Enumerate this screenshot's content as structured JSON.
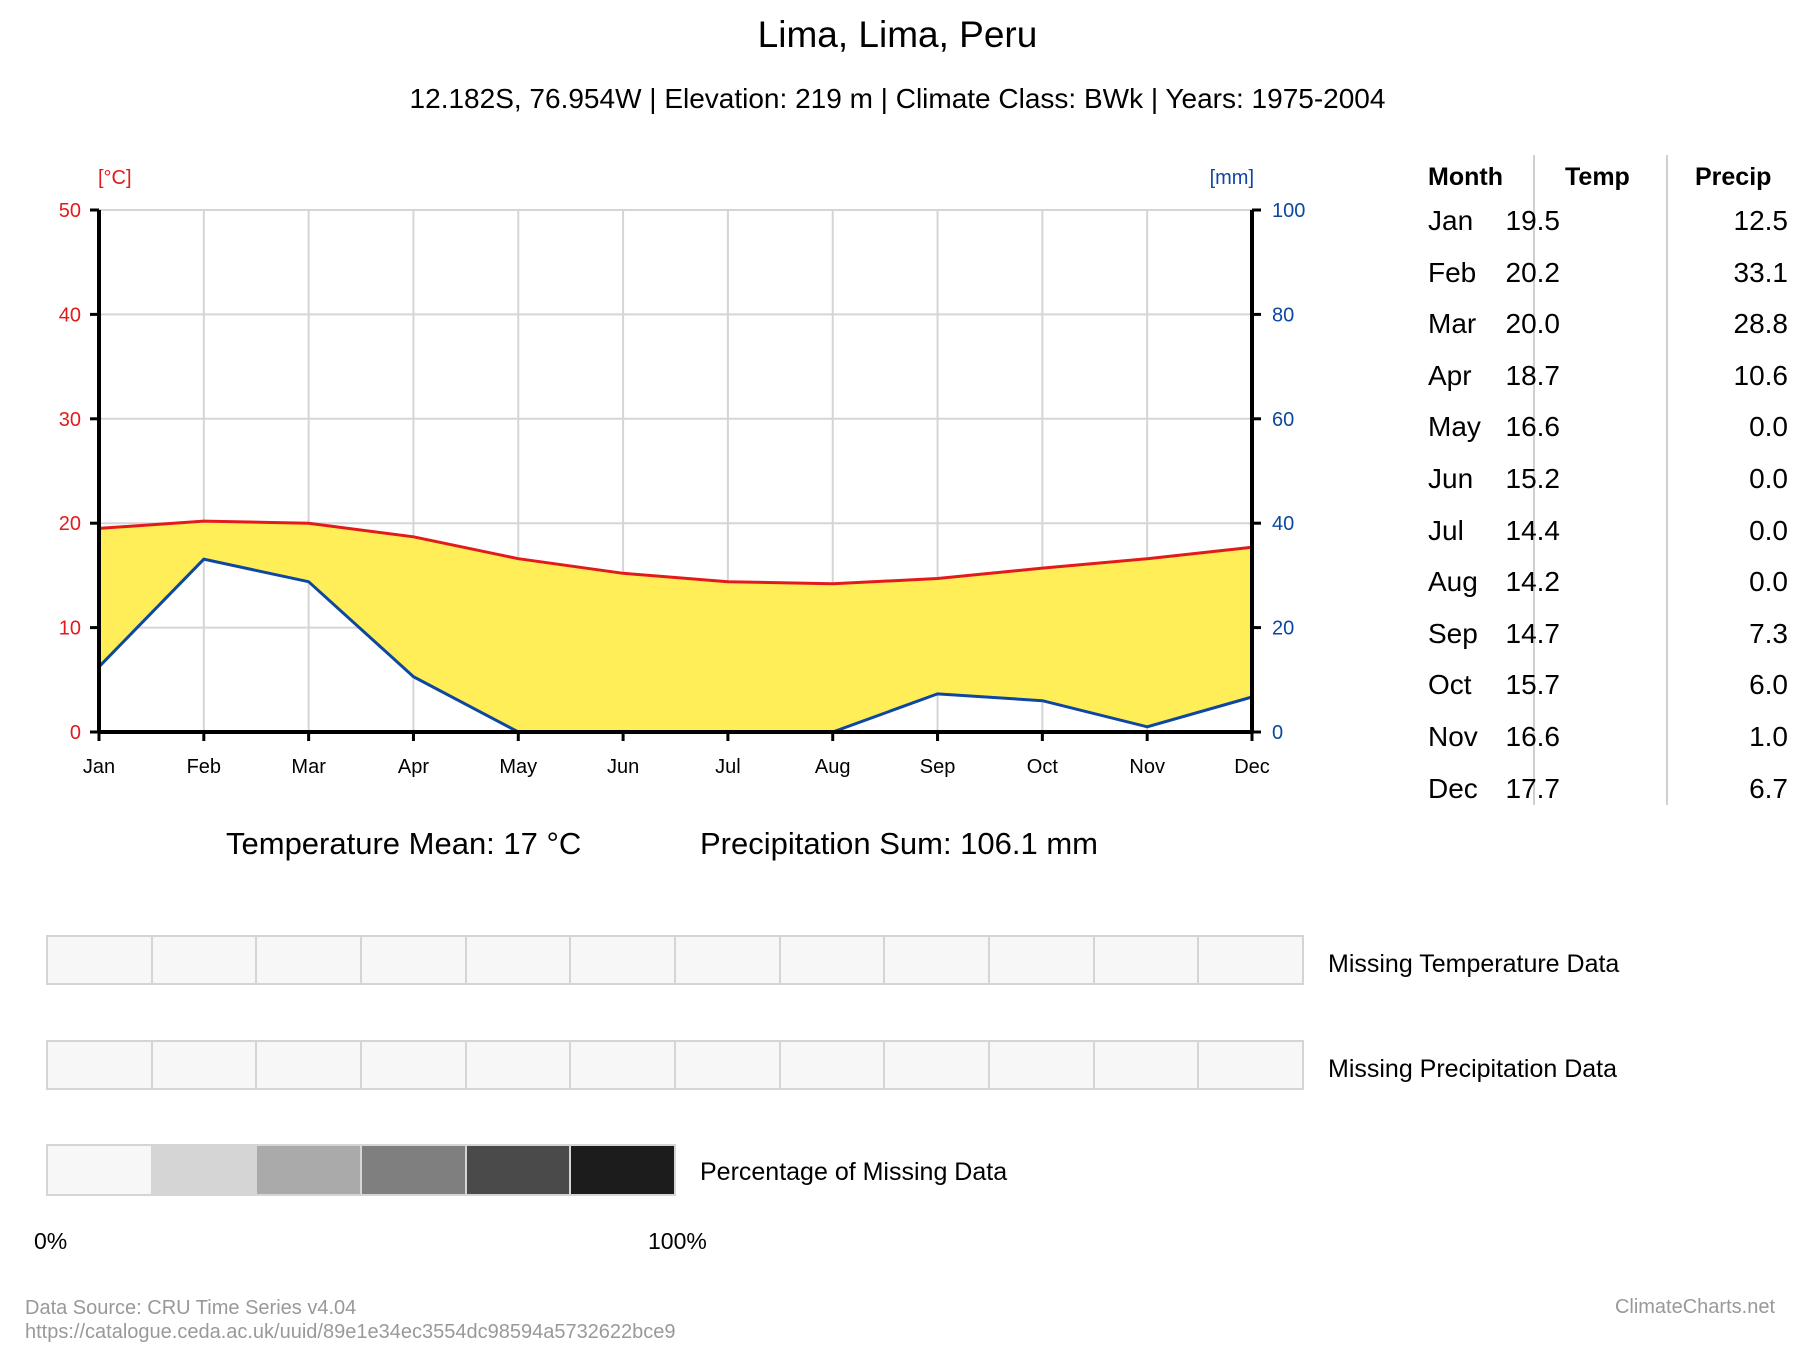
{
  "title": "Lima, Lima, Peru",
  "subtitle": "12.182S, 76.954W | Elevation: 219 m | Climate Class: BWk | Years: 1975-2004",
  "summary": {
    "temp_mean": "Temperature Mean: 17 °C",
    "precip_sum": "Precipitation Sum: 106.1 mm"
  },
  "table": {
    "headers": [
      "Month",
      "Temp",
      "Precip"
    ],
    "rows": [
      {
        "month": "Jan",
        "temp": "19.5",
        "precip": "12.5"
      },
      {
        "month": "Feb",
        "temp": "20.2",
        "precip": "33.1"
      },
      {
        "month": "Mar",
        "temp": "20.0",
        "precip": "28.8"
      },
      {
        "month": "Apr",
        "temp": "18.7",
        "precip": "10.6"
      },
      {
        "month": "May",
        "temp": "16.6",
        "precip": "0.0"
      },
      {
        "month": "Jun",
        "temp": "15.2",
        "precip": "0.0"
      },
      {
        "month": "Jul",
        "temp": "14.4",
        "precip": "0.0"
      },
      {
        "month": "Aug",
        "temp": "14.2",
        "precip": "0.0"
      },
      {
        "month": "Sep",
        "temp": "14.7",
        "precip": "7.3"
      },
      {
        "month": "Oct",
        "temp": "15.7",
        "precip": "6.0"
      },
      {
        "month": "Nov",
        "temp": "16.6",
        "precip": "1.0"
      },
      {
        "month": "Dec",
        "temp": "17.7",
        "precip": "6.7"
      }
    ]
  },
  "missing": {
    "temp_label": "Missing Temperature Data",
    "precip_label": "Missing Precipitation Data",
    "temp_fractions": [
      0,
      0,
      0,
      0,
      0,
      0,
      0,
      0,
      0,
      0,
      0,
      0
    ],
    "precip_fractions": [
      0,
      0,
      0,
      0,
      0,
      0,
      0,
      0,
      0,
      0,
      0,
      0
    ],
    "legend_label": "Percentage of Missing Data",
    "legend_colors": [
      "#f7f7f7",
      "#d5d5d5",
      "#aaaaaa",
      "#7f7f7f",
      "#4a4a4a",
      "#1c1c1c"
    ],
    "legend_min": "0%",
    "legend_max": "100%"
  },
  "footer": {
    "source": "Data Source: CRU Time Series v4.04",
    "url": "https://catalogue.ceda.ac.uk/uuid/89e1e34ec3554dc98594a5732622bce9",
    "brand": "ClimateCharts.net"
  },
  "colors": {
    "temp": "#e31a1c",
    "precip": "#0d47a1",
    "arid_fill": "#ffee58",
    "grid": "#d5d5d5"
  },
  "chart_data": {
    "type": "line",
    "categories": [
      "Jan",
      "Feb",
      "Mar",
      "Apr",
      "May",
      "Jun",
      "Jul",
      "Aug",
      "Sep",
      "Oct",
      "Nov",
      "Dec"
    ],
    "series": [
      {
        "name": "Temp",
        "axis": "left",
        "values": [
          19.5,
          20.2,
          20.0,
          18.7,
          16.6,
          15.2,
          14.4,
          14.2,
          14.7,
          15.7,
          16.6,
          17.7
        ]
      },
      {
        "name": "Precip",
        "axis": "right",
        "values": [
          12.5,
          33.1,
          28.8,
          10.6,
          0.0,
          0.0,
          0.0,
          0.0,
          7.3,
          6.0,
          1.0,
          6.7
        ]
      }
    ],
    "left_axis": {
      "unit": "[°C]",
      "ylim": [
        0,
        50
      ],
      "ticks": [
        0,
        10,
        20,
        30,
        40,
        50
      ]
    },
    "right_axis": {
      "unit": "[mm]",
      "ylim": [
        0,
        100
      ],
      "ticks": [
        0,
        20,
        40,
        60,
        80,
        100
      ]
    },
    "grid": true,
    "fill": "arid area between temperature and precipitation lines"
  }
}
